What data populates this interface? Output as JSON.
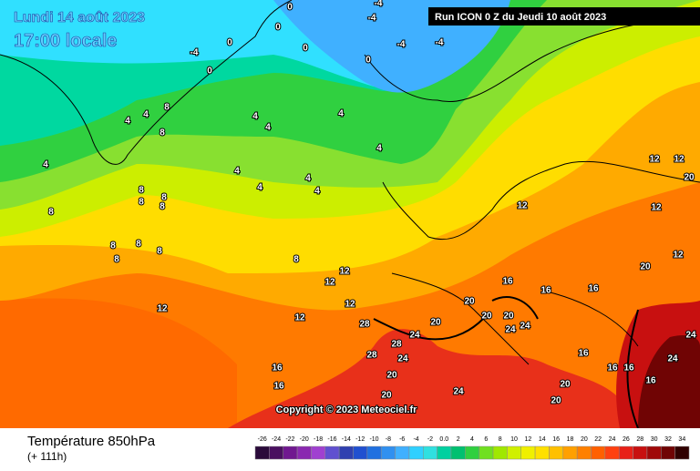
{
  "header": {
    "date": "Lundi 14 août 2023",
    "time": "17:00 locale",
    "run": "Run ICON 0 Z du Jeudi 10 août 2023"
  },
  "copyright": "Copyright © 2023 Meteociel.fr",
  "footer": {
    "title": "Température 850hPa",
    "lead": "(+ 111h)"
  },
  "legend": {
    "labels": [
      "-26",
      "-24",
      "-22",
      "-20",
      "-18",
      "-16",
      "-14",
      "-12",
      "-10",
      "-8",
      "-6",
      "-4",
      "-2",
      "0.0",
      "2",
      "4",
      "6",
      "8",
      "10",
      "12",
      "14",
      "16",
      "18",
      "20",
      "22",
      "24",
      "26",
      "28",
      "30",
      "32",
      "34"
    ],
    "colors": [
      "#2a0a3a",
      "#4a1060",
      "#701890",
      "#8a28b0",
      "#a040d0",
      "#6050d0",
      "#3040b0",
      "#2050d0",
      "#2070e0",
      "#3090f0",
      "#40b0ff",
      "#30d0ff",
      "#30e0e0",
      "#00d0a0",
      "#00c070",
      "#30d040",
      "#70e020",
      "#a0e800",
      "#d0f000",
      "#f0f000",
      "#ffe000",
      "#ffc000",
      "#ffa000",
      "#ff8000",
      "#ff6000",
      "#ff4010",
      "#e82018",
      "#c81010",
      "#a00808",
      "#700404",
      "#300000"
    ]
  },
  "map_labels": [
    "0",
    "0",
    "0",
    "0",
    "-4",
    "-4",
    "-4",
    "0",
    "-4",
    "0",
    "-4",
    "4",
    "4",
    "8",
    "8",
    "4",
    "4",
    "4",
    "4",
    "4",
    "4",
    "4",
    "4",
    "4",
    "8",
    "8",
    "8",
    "8",
    "8",
    "8",
    "8",
    "8",
    "8",
    "8",
    "12",
    "12",
    "12",
    "12",
    "12",
    "12",
    "12",
    "12",
    "12",
    "12",
    "20",
    "16",
    "16",
    "16",
    "20",
    "20",
    "20",
    "20",
    "20",
    "24",
    "24",
    "24",
    "28",
    "24",
    "20",
    "20",
    "24",
    "28",
    "28",
    "24",
    "24",
    "16",
    "16",
    "16",
    "16",
    "20",
    "20",
    "16",
    "16"
  ]
}
